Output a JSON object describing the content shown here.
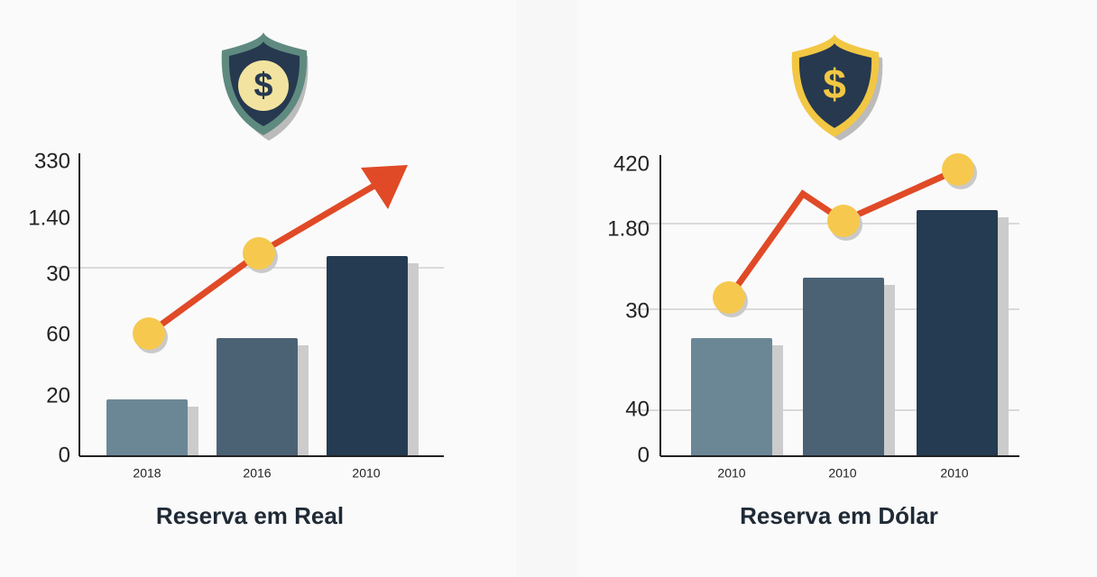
{
  "panels": [
    {
      "title": "Reserva em Real",
      "y_labels": [
        "330",
        "1.40",
        "30",
        "60",
        "20",
        "0"
      ],
      "x_labels": [
        "2018",
        "2016",
        "2010"
      ]
    },
    {
      "title": "Reserva em Dólar",
      "y_labels": [
        "420",
        "1.80",
        "30",
        "40",
        "0"
      ],
      "x_labels": [
        "2010",
        "2010",
        "2010"
      ]
    }
  ]
}
